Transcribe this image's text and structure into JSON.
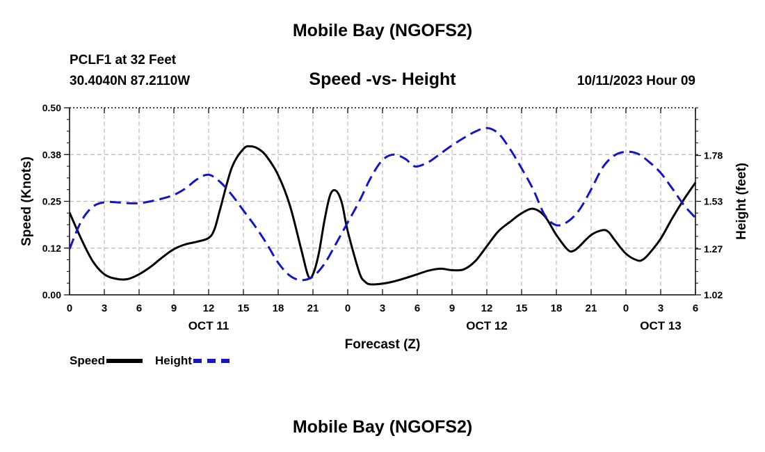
{
  "page": {
    "title_top": "Mobile Bay (NGOFS2)",
    "title_bottom": "Mobile Bay (NGOFS2)",
    "station": "PCLF1 at 32 Feet",
    "coords": "30.4040N  87.2110W",
    "subtitle": "Speed -vs- Height",
    "datetime": "10/11/2023 Hour 09"
  },
  "colors": {
    "speed": "#000000",
    "height": "#1414c8",
    "grid": "#bbbbbb"
  },
  "chart_data": {
    "type": "line",
    "xlabel": "Forecast (Z)",
    "ylabel": "Speed (Knots)",
    "y2label": "Height (feet)",
    "xlim": [
      0,
      54
    ],
    "ylim": [
      0,
      0.5
    ],
    "y2lim": [
      1.02,
      2.04
    ],
    "x_ticks": [
      0,
      3,
      6,
      9,
      12,
      15,
      18,
      21,
      24,
      27,
      30,
      33,
      36,
      39,
      42,
      45,
      48,
      51,
      54
    ],
    "x_tick_labels": [
      "0",
      "3",
      "6",
      "9",
      "12",
      "15",
      "18",
      "21",
      "0",
      "3",
      "6",
      "9",
      "12",
      "15",
      "18",
      "21",
      "0",
      "3",
      "6"
    ],
    "y_ticks": [
      0,
      0.125,
      0.25,
      0.375,
      0.5
    ],
    "y_tick_labels": [
      "0.00",
      "0.12",
      "0.25",
      "0.38",
      "0.50"
    ],
    "y2_ticks": [
      1.02,
      1.27,
      1.53,
      1.78
    ],
    "y2_tick_labels": [
      "1.02",
      "1.27",
      "1.53",
      "1.78"
    ],
    "date_labels": [
      {
        "x": 12,
        "text": "OCT 11"
      },
      {
        "x": 36,
        "text": "OCT 12"
      },
      {
        "x": 51,
        "text": "OCT 13"
      }
    ],
    "legend": [
      "Speed",
      "Height"
    ],
    "series": [
      {
        "name": "Speed",
        "axis": "left",
        "style": "solid",
        "points": [
          [
            0,
            0.22
          ],
          [
            1,
            0.15
          ],
          [
            2,
            0.09
          ],
          [
            3,
            0.055
          ],
          [
            4,
            0.043
          ],
          [
            5,
            0.042
          ],
          [
            6,
            0.055
          ],
          [
            7,
            0.075
          ],
          [
            8,
            0.1
          ],
          [
            9,
            0.122
          ],
          [
            10,
            0.135
          ],
          [
            11,
            0.142
          ],
          [
            12,
            0.152
          ],
          [
            12.5,
            0.175
          ],
          [
            13,
            0.23
          ],
          [
            14,
            0.34
          ],
          [
            15,
            0.39
          ],
          [
            15.6,
            0.397
          ],
          [
            16.3,
            0.39
          ],
          [
            17,
            0.37
          ],
          [
            18,
            0.32
          ],
          [
            19,
            0.24
          ],
          [
            20,
            0.12
          ],
          [
            20.6,
            0.05
          ],
          [
            21,
            0.055
          ],
          [
            21.5,
            0.11
          ],
          [
            22,
            0.2
          ],
          [
            22.5,
            0.268
          ],
          [
            23,
            0.278
          ],
          [
            23.5,
            0.245
          ],
          [
            24,
            0.17
          ],
          [
            25,
            0.06
          ],
          [
            25.5,
            0.035
          ],
          [
            26,
            0.028
          ],
          [
            27,
            0.03
          ],
          [
            28,
            0.036
          ],
          [
            29,
            0.045
          ],
          [
            30,
            0.055
          ],
          [
            31,
            0.065
          ],
          [
            32,
            0.07
          ],
          [
            33,
            0.066
          ],
          [
            34,
            0.068
          ],
          [
            35,
            0.09
          ],
          [
            36,
            0.13
          ],
          [
            37,
            0.17
          ],
          [
            38,
            0.195
          ],
          [
            39,
            0.218
          ],
          [
            40,
            0.23
          ],
          [
            41,
            0.21
          ],
          [
            42,
            0.16
          ],
          [
            43,
            0.12
          ],
          [
            43.5,
            0.118
          ],
          [
            44,
            0.13
          ],
          [
            45,
            0.16
          ],
          [
            46,
            0.173
          ],
          [
            46.5,
            0.168
          ],
          [
            47,
            0.148
          ],
          [
            48,
            0.11
          ],
          [
            49,
            0.092
          ],
          [
            49.5,
            0.095
          ],
          [
            50,
            0.11
          ],
          [
            51,
            0.15
          ],
          [
            52,
            0.205
          ],
          [
            53,
            0.255
          ],
          [
            54,
            0.3
          ]
        ]
      },
      {
        "name": "Height",
        "axis": "right",
        "style": "dashed",
        "points": [
          [
            0,
            1.27
          ],
          [
            1,
            1.42
          ],
          [
            2,
            1.5
          ],
          [
            3,
            1.525
          ],
          [
            4,
            1.525
          ],
          [
            5,
            1.52
          ],
          [
            6,
            1.52
          ],
          [
            7,
            1.53
          ],
          [
            8,
            1.545
          ],
          [
            9,
            1.565
          ],
          [
            10,
            1.6
          ],
          [
            11,
            1.65
          ],
          [
            12,
            1.675
          ],
          [
            13,
            1.635
          ],
          [
            14,
            1.565
          ],
          [
            15,
            1.48
          ],
          [
            16,
            1.395
          ],
          [
            17,
            1.3
          ],
          [
            18,
            1.195
          ],
          [
            19,
            1.125
          ],
          [
            20,
            1.1
          ],
          [
            21,
            1.12
          ],
          [
            22,
            1.19
          ],
          [
            23,
            1.3
          ],
          [
            24,
            1.415
          ],
          [
            25,
            1.53
          ],
          [
            26,
            1.66
          ],
          [
            27,
            1.755
          ],
          [
            28,
            1.785
          ],
          [
            29,
            1.76
          ],
          [
            29.5,
            1.73
          ],
          [
            30,
            1.72
          ],
          [
            31,
            1.745
          ],
          [
            32,
            1.79
          ],
          [
            33,
            1.835
          ],
          [
            34,
            1.875
          ],
          [
            35,
            1.91
          ],
          [
            36,
            1.93
          ],
          [
            37,
            1.9
          ],
          [
            38,
            1.815
          ],
          [
            39,
            1.71
          ],
          [
            40,
            1.595
          ],
          [
            41,
            1.455
          ],
          [
            42,
            1.4
          ],
          [
            43,
            1.42
          ],
          [
            44,
            1.485
          ],
          [
            45,
            1.595
          ],
          [
            46,
            1.715
          ],
          [
            47,
            1.78
          ],
          [
            48,
            1.8
          ],
          [
            49,
            1.79
          ],
          [
            50,
            1.745
          ],
          [
            51,
            1.685
          ],
          [
            52,
            1.6
          ],
          [
            53,
            1.51
          ],
          [
            54,
            1.44
          ]
        ]
      }
    ]
  }
}
